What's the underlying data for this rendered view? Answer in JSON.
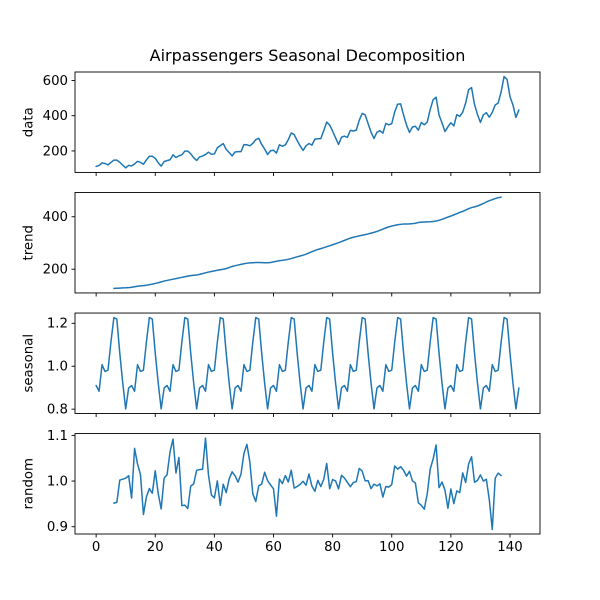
{
  "chart_data": {
    "type": "line",
    "title": "Airpassengers Seasonal Decomposition",
    "line_color": "#1f77b4",
    "text_color": "#000000",
    "background": "#ffffff",
    "grid": false,
    "legend": "none",
    "x_axis": {
      "tick_values": [
        0,
        20,
        40,
        60,
        80,
        100,
        120,
        140
      ],
      "tick_labels": [
        "0",
        "20",
        "40",
        "60",
        "80",
        "100",
        "120",
        "140"
      ],
      "n_points": 144,
      "xlim_note": "index 0..143 with 5% margins"
    },
    "panels": [
      {
        "ylabel": "data",
        "series": "data",
        "x_start": 0,
        "ytick_values": [
          200,
          400,
          600
        ],
        "ytick_labels": [
          "200",
          "400",
          "600"
        ]
      },
      {
        "ylabel": "trend",
        "series": "trend",
        "x_start": 6,
        "ytick_values": [
          200,
          400
        ],
        "ytick_labels": [
          "200",
          "400"
        ]
      },
      {
        "ylabel": "seasonal",
        "series": "seasonal",
        "x_start": 0,
        "ytick_values": [
          0.8,
          1.0,
          1.2
        ],
        "ytick_labels": [
          "0.8",
          "1.0",
          "1.2"
        ]
      },
      {
        "ylabel": "random",
        "series": "random",
        "x_start": 6,
        "ytick_values": [
          0.9,
          1.0,
          1.1
        ],
        "ytick_labels": [
          "0.9",
          "1.0",
          "1.1"
        ]
      }
    ],
    "airpassengers": [
      112,
      118,
      132,
      129,
      121,
      135,
      148,
      148,
      136,
      119,
      104,
      118,
      115,
      126,
      141,
      135,
      125,
      149,
      170,
      170,
      158,
      133,
      114,
      140,
      145,
      150,
      178,
      163,
      172,
      178,
      199,
      199,
      184,
      162,
      146,
      166,
      171,
      180,
      193,
      181,
      183,
      218,
      230,
      242,
      209,
      191,
      172,
      194,
      196,
      196,
      236,
      235,
      229,
      243,
      264,
      272,
      237,
      211,
      180,
      201,
      204,
      188,
      235,
      227,
      234,
      264,
      302,
      293,
      259,
      229,
      203,
      229,
      242,
      233,
      267,
      269,
      270,
      315,
      364,
      347,
      312,
      274,
      237,
      278,
      284,
      277,
      317,
      313,
      318,
      374,
      413,
      405,
      355,
      306,
      271,
      306,
      315,
      301,
      356,
      348,
      355,
      422,
      465,
      467,
      404,
      347,
      305,
      336,
      340,
      318,
      362,
      348,
      363,
      435,
      491,
      505,
      404,
      359,
      310,
      337,
      360,
      342,
      406,
      396,
      420,
      472,
      548,
      559,
      463,
      407,
      362,
      405,
      417,
      391,
      419,
      461,
      472,
      535,
      622,
      606,
      508,
      461,
      390,
      432
    ],
    "seasonal_factors": [
      0.9102304,
      0.8836253,
      1.0073663,
      0.975906,
      0.981378,
      1.1127758,
      1.2265555,
      1.219911,
      1.0604919,
      0.9217572,
      0.8011781,
      0.8988244
    ],
    "derived": {
      "model": "multiplicative",
      "trend": "centered 12-month moving average of airpassengers, defined for index 6..137 (first value 126.79, last value 475.04)",
      "seasonal": "seasonal_factors repeated 12 times across all 144 months (min 0.80, max 1.23)",
      "random": "airpassengers / (trend * seasonal), defined for index 6..137 (min ~0.896, max ~1.106)"
    }
  }
}
